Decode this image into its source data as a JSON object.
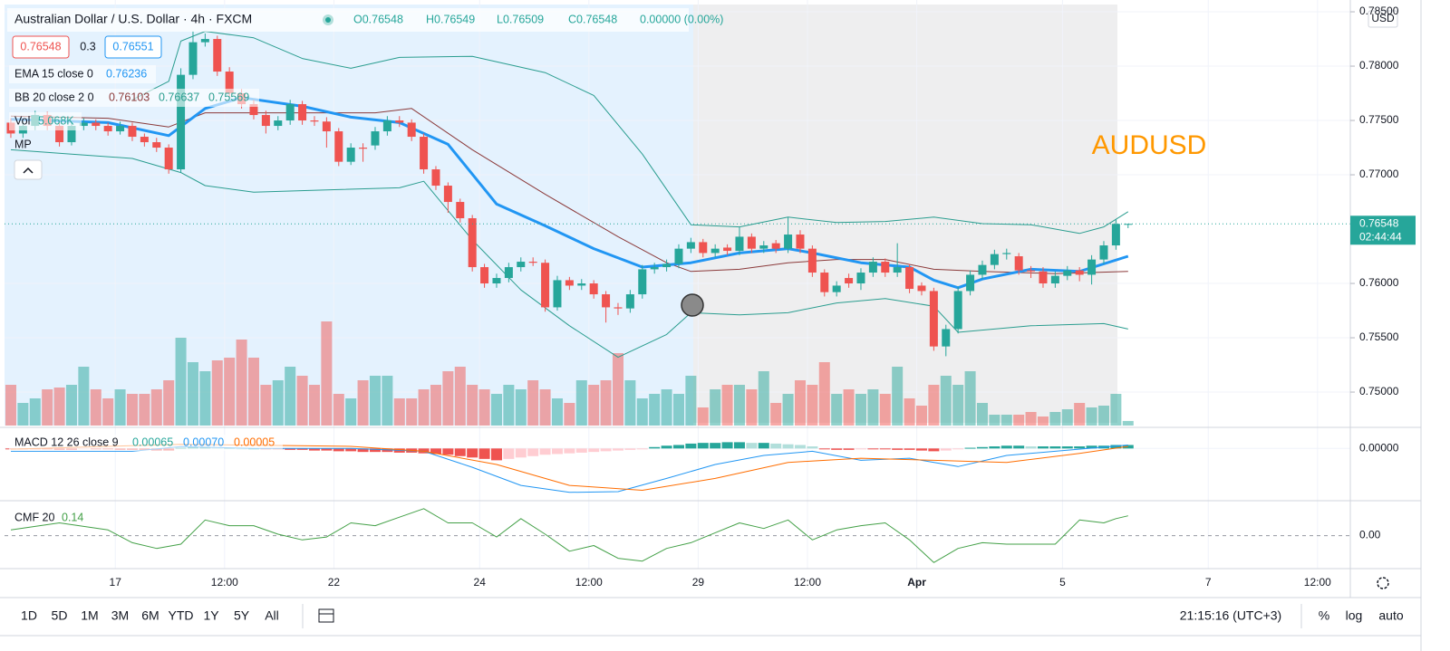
{
  "header": {
    "symbol": "Australian Dollar / U.S. Dollar · 4h · FXCM",
    "open": "O0.76548",
    "high": "H0.76549",
    "low": "L0.76509",
    "close": "C0.76548",
    "change": "0.00000 (0.00%)",
    "sell": "0.76548",
    "spread": "0.3",
    "buy": "0.76551"
  },
  "indicators": {
    "ema": {
      "label": "EMA 15 close 0",
      "value": "0.76236"
    },
    "bb": {
      "label": "BB 20 close 2 0",
      "basis": "0.76103",
      "upper": "0.76637",
      "lower": "0.75569"
    },
    "vol": {
      "label": "Vol",
      "value": "5.068K"
    },
    "mp": "MP",
    "macd": {
      "label": "MACD 12 26 close 9",
      "hist": "0.00065",
      "macd": "0.00070",
      "signal": "0.00005"
    },
    "cmf": {
      "label": "CMF 20",
      "value": "0.14"
    }
  },
  "chart_data": {
    "type": "candlestick",
    "currency": "USD",
    "annotation": "AUDUSD",
    "up_color": "#26a69a",
    "down_color": "#ef5350",
    "xlim": [
      -0.52,
      110.3
    ],
    "xticks": [
      {
        "value": 8.6,
        "label": "17"
      },
      {
        "value": 17.6,
        "label": "12:00"
      },
      {
        "value": 26.6,
        "label": "22"
      },
      {
        "value": 38.6,
        "label": "24"
      },
      {
        "value": 47.6,
        "label": "12:00"
      },
      {
        "value": 56.6,
        "label": "29"
      },
      {
        "value": 65.6,
        "label": "12:00"
      },
      {
        "value": 74.6,
        "label": "Apr"
      },
      {
        "value": 86.6,
        "label": "5"
      },
      {
        "value": 98.6,
        "label": "7"
      },
      {
        "value": 107.6,
        "label": "12:00"
      }
    ],
    "ylim": [
      0.74692,
      0.78567
    ],
    "yticks": [
      {
        "value": 0.785,
        "label": "0.78500"
      },
      {
        "value": 0.78,
        "label": "0.78000"
      },
      {
        "value": 0.775,
        "label": "0.77500"
      },
      {
        "value": 0.77,
        "label": "0.77000"
      },
      {
        "value": 0.76,
        "label": "0.76000"
      },
      {
        "value": 0.755,
        "label": "0.75500"
      },
      {
        "value": 0.75,
        "label": "0.75000"
      }
    ],
    "grid": true,
    "last_price": 0.76548,
    "last_price_label": "0.76548",
    "countdown": "02:44:44",
    "ohlc": [
      [
        0.7748,
        0.7752,
        0.7734,
        0.7738
      ],
      [
        0.7738,
        0.7749,
        0.7734,
        0.7745
      ],
      [
        0.7745,
        0.7759,
        0.7741,
        0.7755
      ],
      [
        0.7755,
        0.7758,
        0.7741,
        0.7745
      ],
      [
        0.7745,
        0.7748,
        0.7726,
        0.773
      ],
      [
        0.773,
        0.7749,
        0.7727,
        0.7745
      ],
      [
        0.7745,
        0.7752,
        0.7741,
        0.7748
      ],
      [
        0.7748,
        0.7751,
        0.7741,
        0.7745
      ],
      [
        0.7745,
        0.7748,
        0.7736,
        0.774
      ],
      [
        0.774,
        0.7749,
        0.7737,
        0.7745
      ],
      [
        0.7745,
        0.7748,
        0.7731,
        0.7735
      ],
      [
        0.7735,
        0.7738,
        0.7726,
        0.773
      ],
      [
        0.773,
        0.7734,
        0.7721,
        0.7725
      ],
      [
        0.7725,
        0.7728,
        0.7701,
        0.7705
      ],
      [
        0.7705,
        0.7798,
        0.7702,
        0.7792
      ],
      [
        0.7792,
        0.7832,
        0.7788,
        0.7822
      ],
      [
        0.7822,
        0.783,
        0.7818,
        0.7825
      ],
      [
        0.7825,
        0.7828,
        0.7791,
        0.7795
      ],
      [
        0.7795,
        0.7799,
        0.7771,
        0.7775
      ],
      [
        0.7775,
        0.7779,
        0.7761,
        0.7765
      ],
      [
        0.7765,
        0.7769,
        0.7751,
        0.7755
      ],
      [
        0.7755,
        0.7759,
        0.7738,
        0.7745
      ],
      [
        0.7745,
        0.7754,
        0.7741,
        0.775
      ],
      [
        0.775,
        0.7769,
        0.7746,
        0.7765
      ],
      [
        0.7765,
        0.7768,
        0.7746,
        0.775
      ],
      [
        0.775,
        0.7754,
        0.7745,
        0.7749
      ],
      [
        0.7749,
        0.7753,
        0.7725,
        0.774
      ],
      [
        0.774,
        0.7743,
        0.7708,
        0.7712
      ],
      [
        0.7712,
        0.7729,
        0.7709,
        0.7725
      ],
      [
        0.7725,
        0.7729,
        0.7712,
        0.7724
      ],
      [
        0.7727,
        0.7744,
        0.7723,
        0.774
      ],
      [
        0.774,
        0.7754,
        0.7736,
        0.775
      ],
      [
        0.775,
        0.7754,
        0.7744,
        0.7748
      ],
      [
        0.7748,
        0.7751,
        0.7731,
        0.7735
      ],
      [
        0.7735,
        0.7738,
        0.7701,
        0.7705
      ],
      [
        0.7705,
        0.7708,
        0.7686,
        0.769
      ],
      [
        0.769,
        0.7693,
        0.7665,
        0.7675
      ],
      [
        0.7675,
        0.7678,
        0.7656,
        0.766
      ],
      [
        0.766,
        0.7663,
        0.7611,
        0.7615
      ],
      [
        0.7615,
        0.7618,
        0.7596,
        0.76
      ],
      [
        0.76,
        0.7609,
        0.7596,
        0.7605
      ],
      [
        0.7605,
        0.7619,
        0.7601,
        0.7615
      ],
      [
        0.7615,
        0.7624,
        0.7611,
        0.762
      ],
      [
        0.762,
        0.7624,
        0.7616,
        0.7619
      ],
      [
        0.7619,
        0.7622,
        0.7574,
        0.7578
      ],
      [
        0.7578,
        0.7607,
        0.7575,
        0.7603
      ],
      [
        0.7603,
        0.7606,
        0.7594,
        0.7598
      ],
      [
        0.7598,
        0.7604,
        0.7594,
        0.76
      ],
      [
        0.76,
        0.7603,
        0.7586,
        0.759
      ],
      [
        0.759,
        0.7593,
        0.7564,
        0.7578
      ],
      [
        0.7578,
        0.7582,
        0.7571,
        0.7577
      ],
      [
        0.7577,
        0.7594,
        0.7573,
        0.759
      ],
      [
        0.759,
        0.7617,
        0.7586,
        0.7613
      ],
      [
        0.7613,
        0.7619,
        0.7609,
        0.7615
      ],
      [
        0.7615,
        0.7622,
        0.7611,
        0.7618
      ],
      [
        0.7618,
        0.7636,
        0.7614,
        0.7632
      ],
      [
        0.7632,
        0.7642,
        0.7628,
        0.7638
      ],
      [
        0.7638,
        0.7641,
        0.7624,
        0.7628
      ],
      [
        0.7628,
        0.7636,
        0.7624,
        0.7632
      ],
      [
        0.7633,
        0.7636,
        0.7626,
        0.763
      ],
      [
        0.763,
        0.7652,
        0.7626,
        0.7643
      ],
      [
        0.7643,
        0.7646,
        0.7628,
        0.7632
      ],
      [
        0.7632,
        0.7639,
        0.7628,
        0.7635
      ],
      [
        0.7637,
        0.764,
        0.7628,
        0.7632
      ],
      [
        0.7632,
        0.7661,
        0.7628,
        0.7645
      ],
      [
        0.7645,
        0.7649,
        0.7628,
        0.7632
      ],
      [
        0.7632,
        0.7635,
        0.7606,
        0.761
      ],
      [
        0.761,
        0.7613,
        0.7588,
        0.7592
      ],
      [
        0.7592,
        0.7602,
        0.7588,
        0.7598
      ],
      [
        0.7605,
        0.7609,
        0.7596,
        0.76
      ],
      [
        0.76,
        0.7614,
        0.7594,
        0.761
      ],
      [
        0.761,
        0.7624,
        0.7606,
        0.762
      ],
      [
        0.762,
        0.7623,
        0.7606,
        0.761
      ],
      [
        0.761,
        0.7637,
        0.7606,
        0.7615
      ],
      [
        0.7615,
        0.7618,
        0.7591,
        0.7595
      ],
      [
        0.7598,
        0.7601,
        0.7589,
        0.7593
      ],
      [
        0.7593,
        0.7596,
        0.7538,
        0.7542
      ],
      [
        0.7542,
        0.7562,
        0.7533,
        0.7558
      ],
      [
        0.7558,
        0.7597,
        0.7554,
        0.7593
      ],
      [
        0.7593,
        0.7612,
        0.7589,
        0.7608
      ],
      [
        0.7608,
        0.7621,
        0.7604,
        0.7617
      ],
      [
        0.7617,
        0.7631,
        0.7613,
        0.7627
      ],
      [
        0.7627,
        0.7632,
        0.7622,
        0.7628
      ],
      [
        0.7625,
        0.7628,
        0.7608,
        0.7612
      ],
      [
        0.7612,
        0.7616,
        0.7605,
        0.7611
      ],
      [
        0.7611,
        0.7615,
        0.7596,
        0.76
      ],
      [
        0.76,
        0.7611,
        0.7596,
        0.7607
      ],
      [
        0.7607,
        0.7616,
        0.7603,
        0.7612
      ],
      [
        0.7612,
        0.7615,
        0.7602,
        0.7608
      ],
      [
        0.7608,
        0.7626,
        0.7599,
        0.7622
      ],
      [
        0.7622,
        0.7639,
        0.7618,
        0.7635
      ],
      [
        0.7635,
        0.7659,
        0.7631,
        0.76548
      ],
      [
        0.76548,
        0.76549,
        0.76509,
        0.76548
      ]
    ],
    "volume": {
      "ylim": [
        0,
        140
      ],
      "values": [
        45,
        25,
        30,
        40,
        42,
        45,
        65,
        40,
        30,
        40,
        35,
        35,
        40,
        50,
        97,
        70,
        60,
        72,
        75,
        95,
        75,
        45,
        50,
        65,
        55,
        45,
        115,
        35,
        30,
        50,
        55,
        55,
        30,
        30,
        40,
        45,
        60,
        65,
        45,
        40,
        35,
        45,
        40,
        50,
        40,
        30,
        25,
        50,
        45,
        50,
        80,
        50,
        30,
        35,
        40,
        35,
        55,
        20,
        40,
        45,
        45,
        40,
        60,
        25,
        35,
        50,
        45,
        70,
        35,
        40,
        35,
        40,
        35,
        65,
        30,
        22,
        45,
        55,
        45,
        60,
        25,
        12,
        12,
        12,
        15,
        10,
        15,
        18,
        25,
        20,
        22,
        35,
        5.068
      ]
    },
    "overlays": [
      {
        "color": "#2a9d8f",
        "width": 1,
        "x": [
          10,
          13,
          14,
          16,
          20,
          24,
          28,
          32,
          38,
          44,
          48,
          52,
          56,
          60,
          64,
          68,
          72,
          76,
          80,
          84,
          88,
          90,
          92
        ],
        "values": [
          0.7769,
          0.7786,
          0.7823,
          0.7832,
          0.7826,
          0.7807,
          0.7798,
          0.7808,
          0.7809,
          0.7794,
          0.7773,
          0.7719,
          0.7654,
          0.7652,
          0.7661,
          0.7656,
          0.7657,
          0.7661,
          0.7655,
          0.7654,
          0.7646,
          0.7652,
          0.7666
        ]
      },
      {
        "color": "#2a9d8f",
        "width": 1,
        "x": [
          0,
          5,
          10,
          14,
          16,
          20,
          26,
          32,
          34,
          38,
          42,
          46,
          50,
          54,
          56,
          60,
          64,
          68,
          72,
          76,
          78,
          84,
          90,
          92
        ],
        "values": [
          0.7723,
          0.7719,
          0.7715,
          0.7702,
          0.769,
          0.7684,
          0.7686,
          0.7688,
          0.7694,
          0.764,
          0.7594,
          0.7561,
          0.7532,
          0.7553,
          0.7573,
          0.7571,
          0.7573,
          0.7582,
          0.7586,
          0.7579,
          0.7555,
          0.7561,
          0.7563,
          0.7558
        ]
      },
      {
        "color": "#8b3a3a",
        "width": 1,
        "x": [
          0,
          8,
          13,
          16,
          22,
          30,
          33,
          38,
          44,
          50,
          54,
          56,
          60,
          64,
          68,
          72,
          76,
          80,
          86,
          92
        ],
        "values": [
          0.7754,
          0.7752,
          0.7744,
          0.7757,
          0.7757,
          0.7757,
          0.7761,
          0.7723,
          0.7682,
          0.7643,
          0.7619,
          0.7611,
          0.7613,
          0.7619,
          0.7622,
          0.7622,
          0.7613,
          0.7611,
          0.7609,
          0.7611
        ]
      },
      {
        "color": "#2196f3",
        "width": 3,
        "x": [
          0,
          8,
          13,
          16,
          19,
          24,
          28,
          32,
          36,
          40,
          44,
          48,
          52,
          56,
          60,
          64,
          66,
          70,
          74,
          76,
          78,
          80,
          84,
          88,
          92
        ],
        "values": [
          0.7751,
          0.7748,
          0.7736,
          0.7761,
          0.7771,
          0.7763,
          0.7753,
          0.7748,
          0.7728,
          0.7673,
          0.7653,
          0.7632,
          0.7615,
          0.7619,
          0.7628,
          0.7632,
          0.7628,
          0.7619,
          0.7615,
          0.7603,
          0.7596,
          0.7604,
          0.7613,
          0.7611,
          0.7625
        ]
      }
    ]
  },
  "macd": {
    "ylim": [
      -0.0075,
      0.0029
    ],
    "yticks": [
      {
        "value": 0,
        "label": "0.00000"
      }
    ],
    "colors": [
      "#26a69a",
      "#b2dfdb",
      "#ef5350",
      "#ffcdd2"
    ],
    "histogram": [
      -0.0001,
      -0.0001,
      -0.0001,
      -0.0001,
      -0.0002,
      -0.0002,
      -0.0001,
      -0.0001,
      -0.0001,
      -0.0002,
      -0.0002,
      -0.0002,
      -0.0003,
      -0.0003,
      0.0001,
      0.0002,
      0.0002,
      0.0001,
      0.0001,
      0,
      0,
      -0.0001,
      -0.0001,
      -0.0002,
      -0.0002,
      -0.0003,
      -0.0003,
      -0.0004,
      -0.0004,
      -0.0005,
      -0.0005,
      -0.0005,
      -0.0006,
      -0.0006,
      -0.0007,
      -0.0008,
      -0.0009,
      -0.0011,
      -0.0013,
      -0.0015,
      -0.0017,
      -0.0015,
      -0.0013,
      -0.0011,
      -0.0009,
      -0.0008,
      -0.0007,
      -0.0006,
      -0.0005,
      -0.0004,
      -0.0003,
      -0.0002,
      -0.0001,
      0.0002,
      0.0004,
      0.0005,
      0.0007,
      0.0008,
      0.0008,
      0.0009,
      0.0009,
      0.0008,
      0.0008,
      0.0007,
      0.0006,
      0.0005,
      0.0003,
      -0.0001,
      -0.0002,
      -0.0002,
      -0.0001,
      -0.0001,
      -0.0001,
      -0.0002,
      -0.0002,
      -0.0003,
      -0.0004,
      -0.0003,
      -0.0001,
      0.0001,
      0.0002,
      0.0003,
      0.0004,
      0.0004,
      0.0003,
      0.0003,
      0.0003,
      0.0003,
      0.0003,
      0.0004,
      0.0004,
      0.0005,
      0.0005
    ],
    "lines": [
      {
        "color": "#2196f3",
        "width": 1,
        "x": [
          0,
          10,
          14,
          20,
          28,
          34,
          38,
          42,
          46,
          50,
          54,
          58,
          62,
          66,
          70,
          74,
          78,
          82,
          86,
          92
        ],
        "values": [
          -0.0004,
          -0.0004,
          0.00026,
          0,
          0,
          -0.0004,
          -0.0027,
          -0.0053,
          -0.0063,
          -0.0062,
          -0.0043,
          -0.0023,
          -0.001,
          -0.0004,
          -0.0017,
          -0.0014,
          -0.0026,
          -0.001,
          -0.0004,
          0.0005
        ]
      },
      {
        "color": "#ff6d00",
        "width": 1,
        "x": [
          0,
          14,
          28,
          34,
          40,
          46,
          52,
          58,
          64,
          70,
          76,
          82,
          88,
          92
        ],
        "values": [
          -0.0001,
          0.0006,
          0.0003,
          -0.0004,
          -0.0023,
          -0.0053,
          -0.006,
          -0.0043,
          -0.002,
          -0.0014,
          -0.0017,
          -0.002,
          -0.0007,
          0.0003
        ]
      }
    ]
  },
  "cmf": {
    "ylim": [
      -0.22,
      0.24
    ],
    "yticks": [
      {
        "value": 0,
        "label": "0.00"
      }
    ],
    "color": "#43a047",
    "x": [
      0,
      4,
      8,
      10,
      12,
      14,
      16,
      18,
      20,
      22,
      24,
      26,
      28,
      30,
      32,
      34,
      36,
      38,
      40,
      42,
      44,
      46,
      48,
      50,
      52,
      54,
      56,
      58,
      60,
      62,
      64,
      66,
      68,
      70,
      72,
      74,
      76,
      78,
      80,
      82,
      84,
      86,
      88,
      90,
      91,
      92
    ],
    "values": [
      0.04,
      0.09,
      0.04,
      -0.05,
      -0.09,
      -0.06,
      0.11,
      0.07,
      0.07,
      0.01,
      -0.03,
      -0.01,
      0.09,
      0.07,
      0.13,
      0.19,
      0.09,
      0.09,
      -0.01,
      0.12,
      0.01,
      -0.11,
      -0.07,
      -0.16,
      -0.18,
      -0.09,
      -0.05,
      0.02,
      0.09,
      0.05,
      0.11,
      -0.03,
      0.04,
      0.07,
      0.09,
      -0.03,
      -0.19,
      -0.09,
      -0.05,
      -0.06,
      -0.06,
      -0.06,
      0.11,
      0.09,
      0.12,
      0.14
    ]
  },
  "toolbar": {
    "ranges": [
      "1D",
      "5D",
      "1M",
      "3M",
      "6M",
      "YTD",
      "1Y",
      "5Y",
      "All"
    ],
    "clock": "21:15:16 (UTC+3)",
    "percent": "%",
    "log": "log",
    "auto": "auto"
  }
}
